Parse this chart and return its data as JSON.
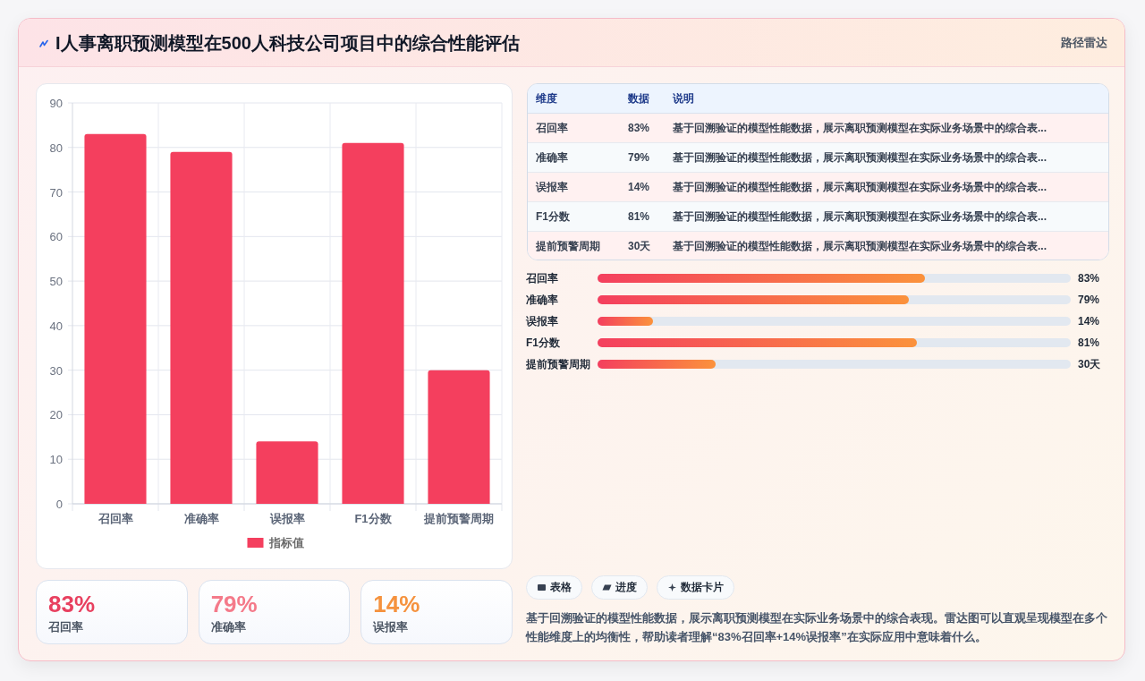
{
  "chart_data": [
    {
      "type": "other",
      "title": "I人事离职预测模型在500人科技公司项目中的综合性能评估",
      "annotations": [
        "路径雷达"
      ]
    },
    {
      "type": "bar",
      "categories": [
        "召回率",
        "准确率",
        "误报率",
        "F1分数",
        "提前预警周期"
      ],
      "series": [
        {
          "name": "指标值",
          "color": "#f43f5e",
          "values": [
            83,
            79,
            14,
            81,
            30
          ]
        }
      ],
      "ylim": [
        0,
        90
      ],
      "yticks": [
        0,
        10,
        20,
        30,
        40,
        50,
        60,
        70,
        80,
        90
      ],
      "grid": true,
      "legend": "bottom"
    },
    {
      "type": "other",
      "categories": [
        "维度",
        "数据",
        "说明"
      ],
      "y_categories": [
        "召回率",
        "准确率",
        "误报率",
        "F1分数",
        "提前预警周期"
      ],
      "cell_labels": [
        [
          "83%",
          "基于回溯验证的模型性能数据，展示离职预测模型在实际业务场景中的综合表..."
        ],
        [
          "79%",
          "基于回溯验证的模型性能数据，展示离职预测模型在实际业务场景中的综合表..."
        ],
        [
          "14%",
          "基于回溯验证的模型性能数据，展示离职预测模型在实际业务场景中的综合表..."
        ],
        [
          "81%",
          "基于回溯验证的模型性能数据，展示离职预测模型在实际业务场景中的综合表..."
        ],
        [
          "30天",
          "基于回溯验证的模型性能数据，展示离职预测模型在实际业务场景中的综合表..."
        ]
      ]
    },
    {
      "type": "bar",
      "orientation": "horizontal",
      "categories": [
        "召回率",
        "准确率",
        "误报率",
        "F1分数",
        "提前预警周期"
      ],
      "values": [
        83,
        79,
        14,
        81,
        30
      ],
      "value_labels": [
        "83%",
        "79%",
        "14%",
        "81%",
        "30天"
      ],
      "xlim": [
        0,
        120
      ],
      "color": "#f43f5e"
    },
    {
      "type": "other",
      "categories": [
        "召回率",
        "准确率",
        "误报率"
      ],
      "value_labels": [
        "83%",
        "79%",
        "14%"
      ]
    },
    {
      "type": "other",
      "categories": [
        "表格",
        "进度",
        "数据卡片"
      ],
      "annotations": [
        "基于回溯验证的模型性能数据，展示离职预测模型在实际业务场景中的综合表现。雷达图可以直观呈现模型在多个性能维度上的均衡性，帮助读者理解“83%召回率+14%误报率”在实际应用中意味着什么。"
      ]
    }
  ]
}
